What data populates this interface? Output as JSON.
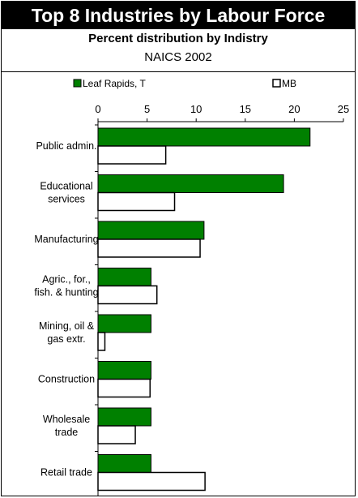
{
  "header": {
    "title": "Top 8 Industries by Labour Force",
    "subtitle": "Percent distribution by Indistry",
    "subtitle2": "NAICS 2002"
  },
  "colors": {
    "series1": "#008000",
    "series2": "#ffffff",
    "header_bg": "#000000"
  },
  "chart_data": {
    "type": "bar",
    "orientation": "horizontal",
    "categories": [
      [
        "Public admin."
      ],
      [
        "Educational",
        "services"
      ],
      [
        "Manufacturing"
      ],
      [
        "Agric., for.,",
        "fish. & hunting"
      ],
      [
        "Mining, oil &",
        "gas extr."
      ],
      [
        "Construction"
      ],
      [
        "Wholesale",
        "trade"
      ],
      [
        "Retail trade"
      ]
    ],
    "series": [
      {
        "name": "Leaf Rapids, T",
        "values": [
          21.6,
          18.9,
          10.8,
          5.4,
          5.4,
          5.4,
          5.4,
          5.4
        ]
      },
      {
        "name": "MB",
        "values": [
          6.9,
          7.8,
          10.4,
          6.0,
          0.7,
          5.3,
          3.8,
          10.9
        ]
      }
    ],
    "xlim": [
      0,
      25
    ],
    "xticks": [
      0,
      5,
      10,
      15,
      20,
      25
    ],
    "legend_position": "top",
    "grid": false
  }
}
